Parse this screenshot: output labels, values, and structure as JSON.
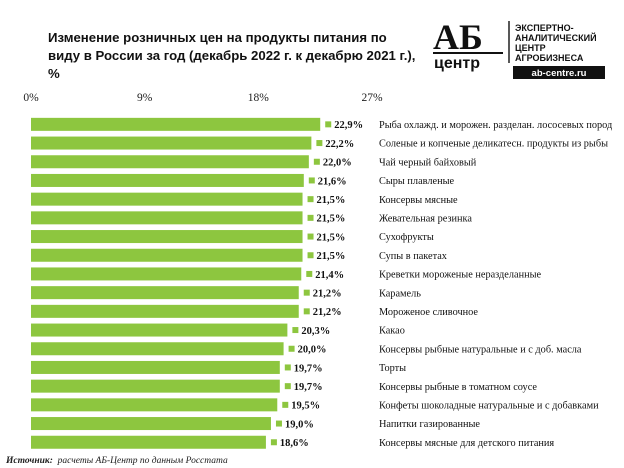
{
  "chart_data": {
    "type": "bar",
    "orientation": "horizontal",
    "title": "Изменение розничных цен на продукты питания по виду в России за год (декабрь 2022 г. к декабрю 2021 г.), %",
    "xlim": [
      0,
      27
    ],
    "ticks": [
      "0%",
      "9%",
      "18%",
      "27%"
    ],
    "tick_values": [
      0,
      9,
      18,
      27
    ],
    "bar_color": "#8DC63F",
    "label_color": "#111111",
    "categories": [
      "Рыба охлажд. и морожен. разделан. лососевых пород",
      "Соленые и копченые деликатесн. продукты из рыбы",
      "Чай черный байховый",
      "Сыры плавленые",
      "Консервы мясные",
      "Жевательная резинка",
      "Сухофрукты",
      "Супы в пакетах",
      "Креветки мороженые неразделанные",
      "Карамель",
      "Мороженое сливочное",
      "Какао",
      "Консервы рыбные натуральные и с доб. масла",
      "Торты",
      "Консервы рыбные в томатном соусе",
      "Конфеты шоколадные натуральные и с добавками",
      "Напитки газированные",
      "Консервы мясные для детского питания"
    ],
    "values": [
      22.9,
      22.2,
      22.0,
      21.6,
      21.5,
      21.5,
      21.5,
      21.5,
      21.4,
      21.2,
      21.2,
      20.3,
      20.0,
      19.7,
      19.7,
      19.5,
      19.0,
      18.6
    ],
    "value_labels": [
      "22,9%",
      "22,2%",
      "22,0%",
      "21,6%",
      "21,5%",
      "21,5%",
      "21,5%",
      "21,5%",
      "21,4%",
      "21,2%",
      "21,2%",
      "20,3%",
      "20,0%",
      "19,7%",
      "19,7%",
      "19,5%",
      "19,0%",
      "18,6%"
    ]
  },
  "logo": {
    "big": "АБ",
    "small": "центр",
    "line1": "ЭКСПЕРТНО-",
    "line2": "АНАЛИТИЧЕСКИЙ",
    "line3": "ЦЕНТР",
    "line4": "АГРОБИЗНЕСА",
    "site": "ab-centre.ru"
  },
  "source": {
    "label": "Источник:",
    "text": "расчеты АБ-Центр по данным Росстата"
  }
}
